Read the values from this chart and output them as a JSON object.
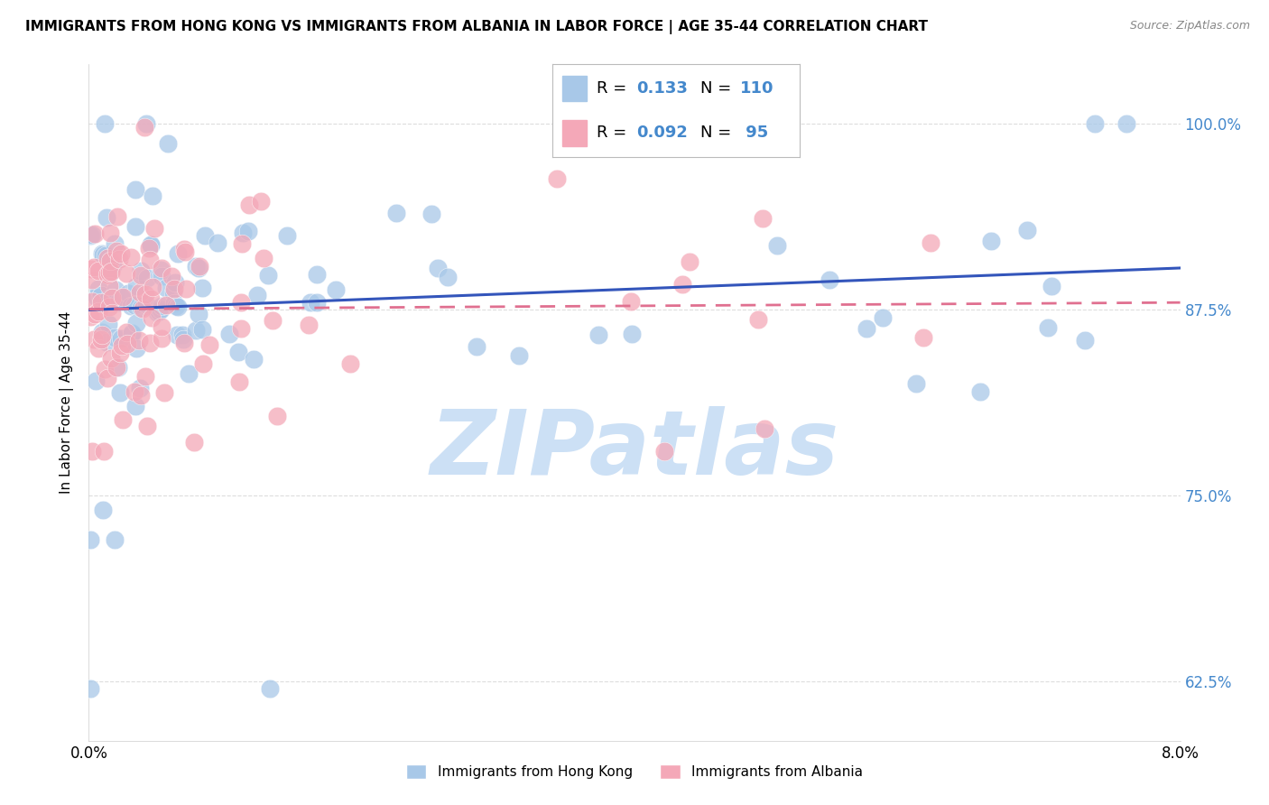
{
  "title": "IMMIGRANTS FROM HONG KONG VS IMMIGRANTS FROM ALBANIA IN LABOR FORCE | AGE 35-44 CORRELATION CHART",
  "source": "Source: ZipAtlas.com",
  "ylabel": "In Labor Force | Age 35-44",
  "ytick_labels": [
    "62.5%",
    "75.0%",
    "87.5%",
    "100.0%"
  ],
  "ytick_values": [
    0.625,
    0.75,
    0.875,
    1.0
  ],
  "xlim": [
    0.0,
    0.08
  ],
  "ylim": [
    0.585,
    1.04
  ],
  "hk_R": "0.133",
  "hk_N": "110",
  "alb_R": "0.092",
  "alb_N": "95",
  "hk_color": "#a8c8e8",
  "alb_color": "#f4a8b8",
  "hk_line_color": "#3355bb",
  "alb_line_color": "#e07090",
  "background_color": "#ffffff",
  "watermark_color": "#cce0f5",
  "grid_color": "#dddddd",
  "right_tick_color": "#4488cc"
}
